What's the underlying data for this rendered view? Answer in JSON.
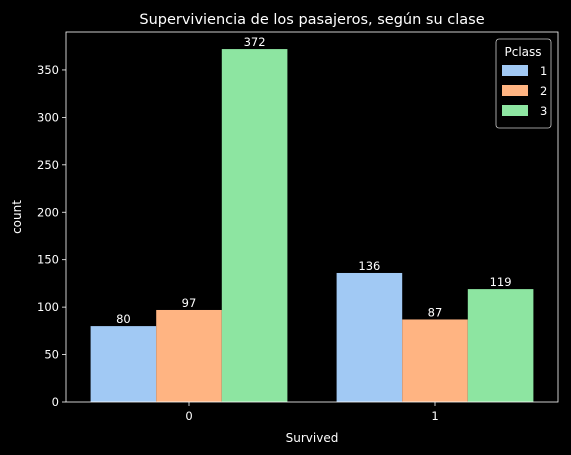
{
  "chart_data": {
    "type": "bar",
    "title": "Superviviencia de los pasajeros, según su clase",
    "xlabel": "Survived",
    "ylabel": "count",
    "categories": [
      "0",
      "1"
    ],
    "ylim": [
      0,
      390
    ],
    "yticks": [
      0,
      50,
      100,
      150,
      200,
      250,
      300,
      350
    ],
    "legend": {
      "title": "Pclass",
      "placement": "top-right"
    },
    "series": [
      {
        "name": "1",
        "color": "#a1c9f4",
        "values": [
          80,
          136
        ],
        "labels": [
          "80",
          "136"
        ]
      },
      {
        "name": "2",
        "color": "#ffb482",
        "values": [
          97,
          87
        ],
        "labels": [
          "97",
          "87"
        ]
      },
      {
        "name": "3",
        "color": "#8de5a1",
        "values": [
          372,
          119
        ],
        "labels": [
          "372",
          "119"
        ]
      }
    ],
    "grid": false
  }
}
